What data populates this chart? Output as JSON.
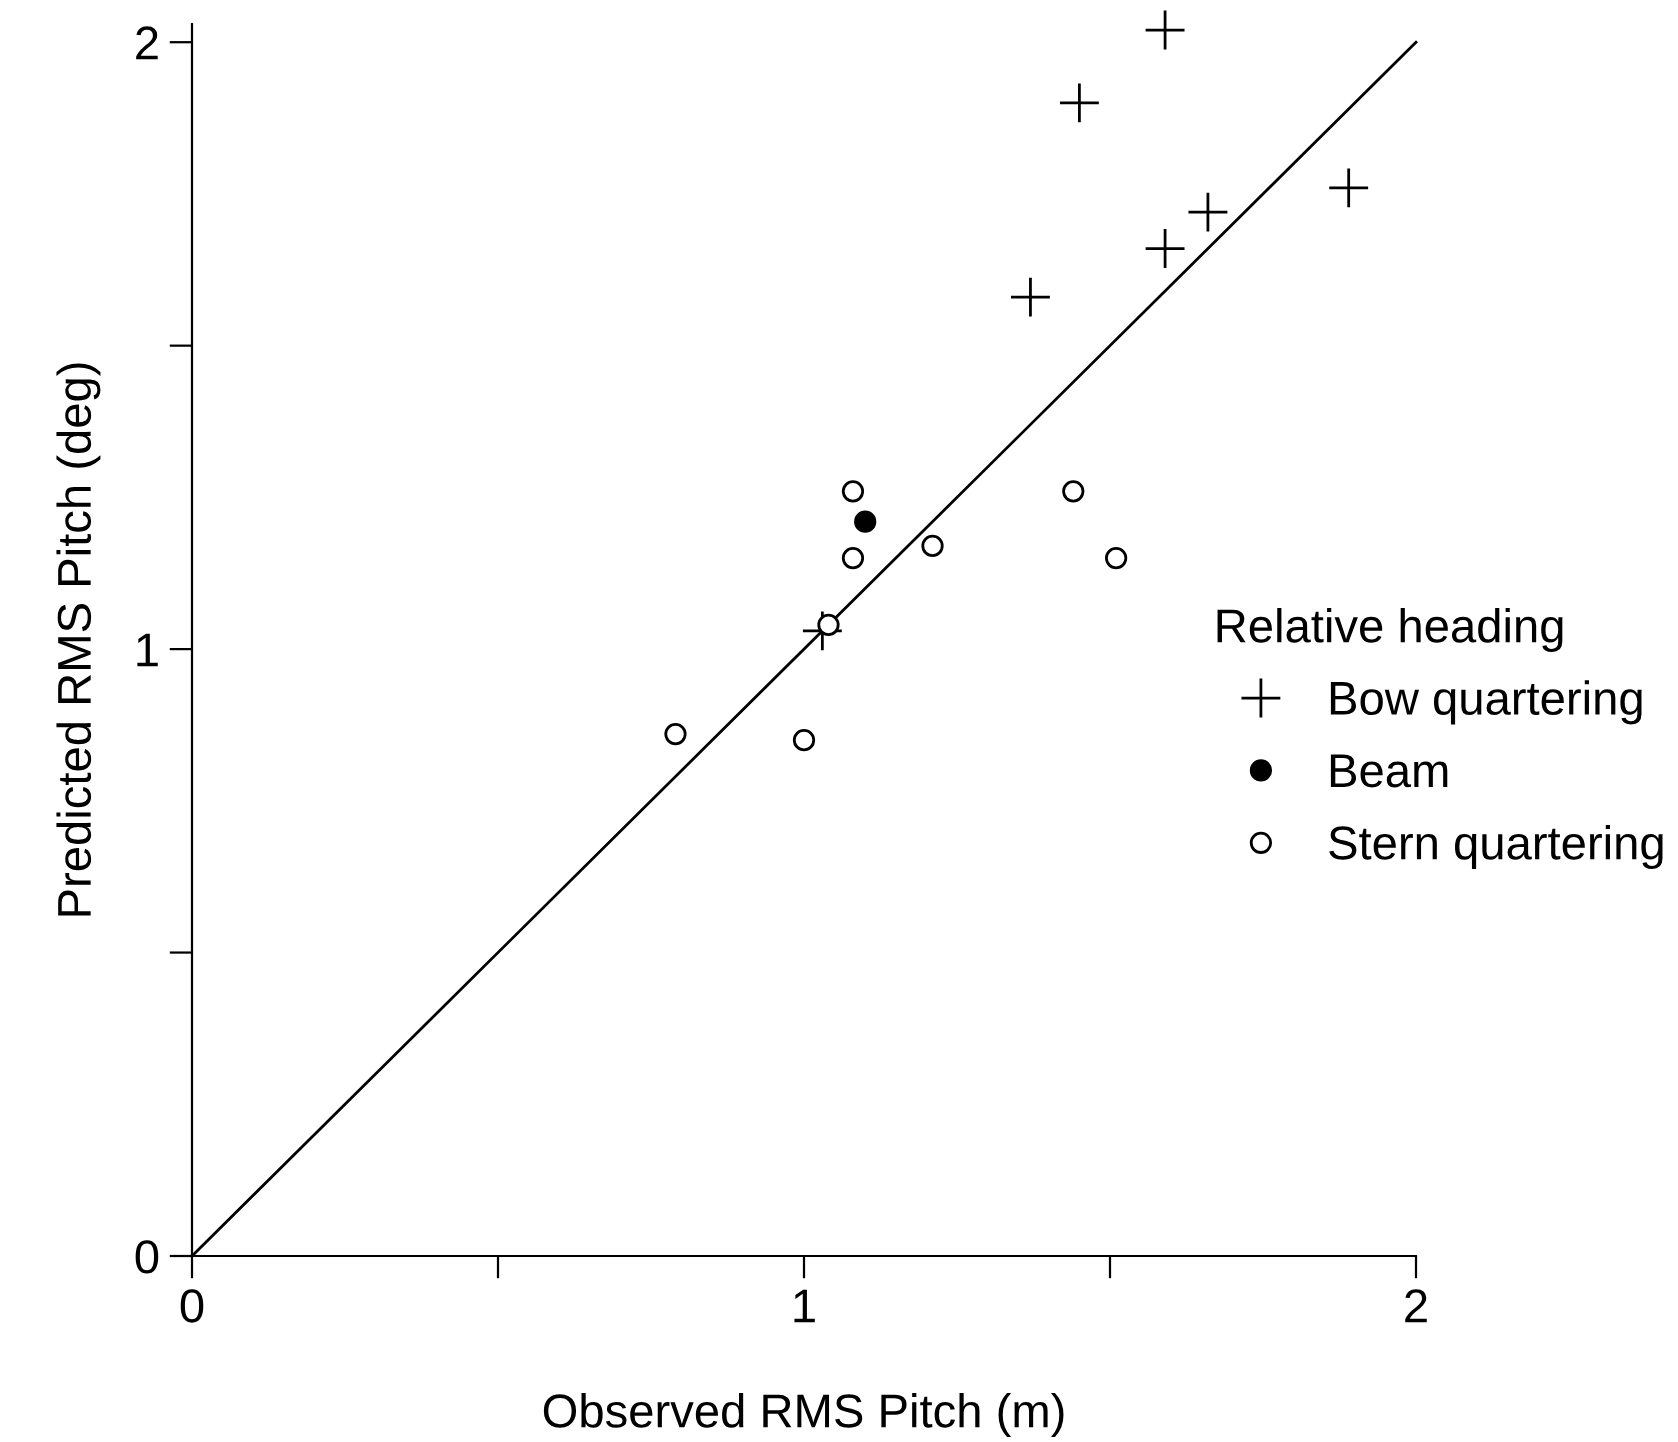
{
  "chart_data": {
    "type": "scatter",
    "xlabel": "Observed RMS Pitch (m)",
    "ylabel": "Predicted RMS Pitch (deg)",
    "legend_title": "Relative heading",
    "legend": "right",
    "xlim": [
      0,
      2
    ],
    "ylim": [
      0,
      2.03
    ],
    "xticks": [
      0,
      {
        "value": 0.5,
        "label": null
      },
      1,
      {
        "value": 1.5,
        "label": null
      },
      2
    ],
    "yticks": [
      0,
      {
        "value": 0.5,
        "label": null
      },
      1,
      {
        "value": 1.5,
        "label": null
      },
      2
    ],
    "grid": false,
    "series": [
      {
        "type": "line",
        "color": "#000000",
        "x": [
          0,
          2
        ],
        "values": [
          0,
          2
        ],
        "marker": "none",
        "line_style": "solid"
      },
      {
        "name": "Bow quartering",
        "color": "#000000",
        "marker": "plus",
        "x": [
          1.59,
          1.45,
          1.37,
          1.59,
          1.66,
          1.89,
          1.03
        ],
        "values": [
          2.02,
          1.9,
          1.58,
          1.66,
          1.72,
          1.76,
          1.03
        ]
      },
      {
        "name": "Beam",
        "color": "#000000",
        "marker": "filled_circle",
        "x": [
          1.1
        ],
        "values": [
          1.21
        ]
      },
      {
        "name": "Stern quartering",
        "color": "#000000",
        "marker": "open_circle",
        "x": [
          1.08,
          1.08,
          1.21,
          1.04,
          0.79,
          1.0,
          1.44,
          1.51
        ],
        "values": [
          1.26,
          1.15,
          1.17,
          1.04,
          0.86,
          0.85,
          1.26,
          1.15
        ]
      }
    ]
  }
}
